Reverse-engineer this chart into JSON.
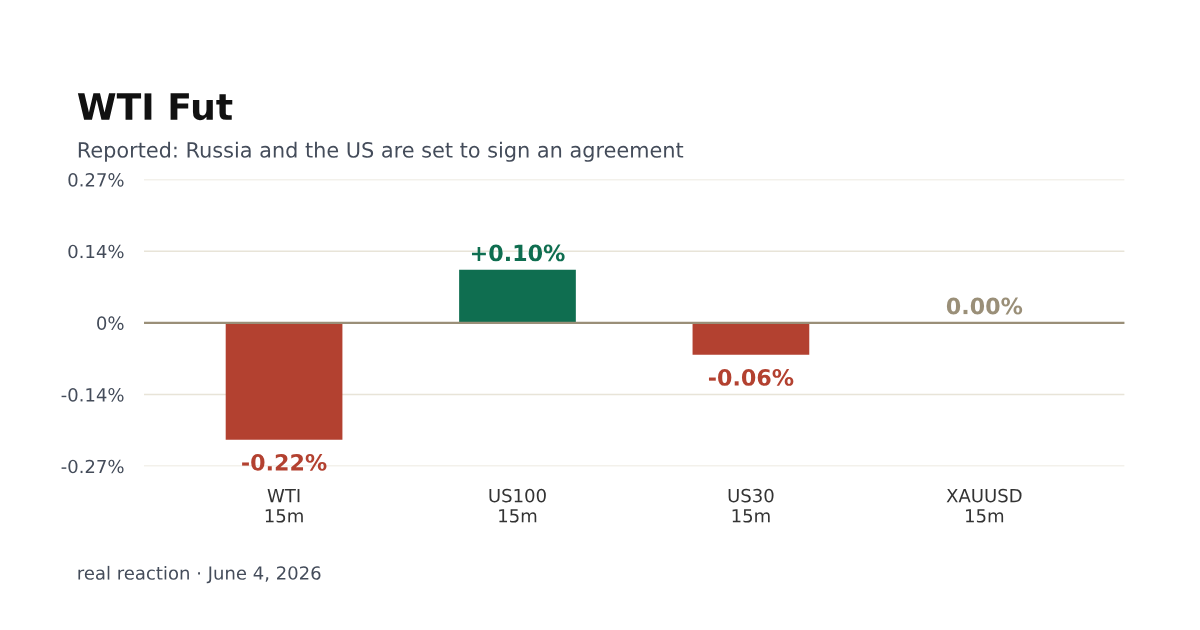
{
  "chart_data": {
    "type": "bar",
    "title": "WTI Fut",
    "subtitle": "Reported: Russia and the US are set to sign an agreement",
    "categories": [
      "WTI\n15m",
      "US100\n15m",
      "US30\n15m",
      "XAUUSD\n15m"
    ],
    "values": [
      -0.22,
      0.1,
      -0.06,
      0.0
    ],
    "colors": [
      "#b34130",
      "#0f6e50",
      "#b34130",
      "#9a8f78"
    ],
    "value_labels": [
      "-0.22%",
      "+0.10%",
      "-0.06%",
      "0.00%"
    ],
    "ylim": [
      -0.27,
      0.27
    ],
    "yticks": [
      {
        "value": -0.27,
        "label": "-0.27%"
      },
      {
        "value": -0.135,
        "label": "-0.14%"
      },
      {
        "value": 0,
        "label": "0%"
      },
      {
        "value": 0.135,
        "label": "0.14%"
      },
      {
        "value": 0.27,
        "label": "0.27%"
      }
    ],
    "grid": "y",
    "legend": false,
    "ref_lines": [
      {
        "axis": "y",
        "value": 0,
        "color": "#9a8f78"
      }
    ],
    "annotations": [
      "real reaction · June 4, 2026"
    ]
  }
}
